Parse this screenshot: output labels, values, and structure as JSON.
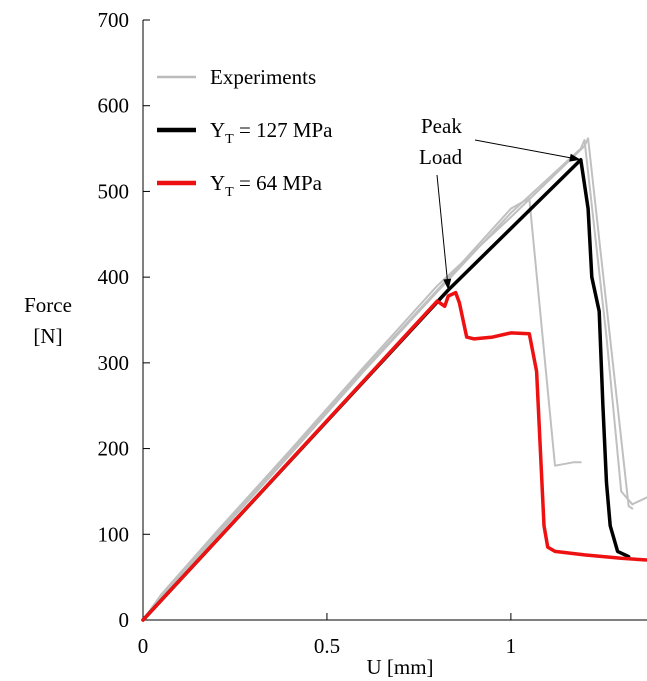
{
  "chart_data": {
    "type": "line",
    "title": "",
    "xlabel": "U [mm]",
    "ylabel_line1": "Force",
    "ylabel_line2": "[N]",
    "xlim": [
      0,
      1.37
    ],
    "ylim": [
      0,
      700
    ],
    "x_ticks": [
      {
        "value": 0,
        "label": "0"
      },
      {
        "value": 0.5,
        "label": "0.5"
      },
      {
        "value": 1,
        "label": "1"
      }
    ],
    "y_ticks": [
      {
        "value": 0,
        "label": "0"
      },
      {
        "value": 100,
        "label": "100"
      },
      {
        "value": 200,
        "label": "200"
      },
      {
        "value": 300,
        "label": "300"
      },
      {
        "value": 400,
        "label": "400"
      },
      {
        "value": 500,
        "label": "500"
      },
      {
        "value": 600,
        "label": "600"
      },
      {
        "value": 700,
        "label": "700"
      }
    ],
    "grid": false,
    "legend_position": "top-left",
    "legend": [
      {
        "main": "Experiments",
        "sub": "",
        "rest": "",
        "color": "#bbbbbb"
      },
      {
        "main": "Y",
        "sub": "T",
        "rest": " = 127 MPa",
        "color": "#000000"
      },
      {
        "main": "Y",
        "sub": "T",
        "rest": " = 64 MPa",
        "color": "#ee1111"
      }
    ],
    "annotation": {
      "line1": "Peak",
      "line2": "Load",
      "targets": [
        [
          0.83,
          385
        ],
        [
          1.19,
          537
        ]
      ]
    },
    "series": [
      {
        "color": "#c0c0c0",
        "width": 2,
        "points": [
          [
            0,
            0
          ],
          [
            0.05,
            28
          ],
          [
            0.2,
            100
          ],
          [
            0.4,
            195
          ],
          [
            0.6,
            292
          ],
          [
            0.8,
            385
          ],
          [
            1.0,
            480
          ],
          [
            1.05,
            492
          ],
          [
            1.12,
            180
          ],
          [
            1.17,
            184
          ],
          [
            1.19,
            184
          ]
        ]
      },
      {
        "color": "#c0c0c0",
        "width": 2,
        "points": [
          [
            0,
            0
          ],
          [
            0.05,
            30
          ],
          [
            0.2,
            103
          ],
          [
            0.4,
            198
          ],
          [
            0.6,
            295
          ],
          [
            0.8,
            390
          ],
          [
            1.0,
            470
          ],
          [
            1.2,
            553
          ],
          [
            1.21,
            562
          ],
          [
            1.32,
            133
          ],
          [
            1.33,
            130
          ]
        ]
      },
      {
        "color": "#c0c0c0",
        "width": 2,
        "points": [
          [
            0,
            0
          ],
          [
            0.05,
            26
          ],
          [
            0.2,
            98
          ],
          [
            0.4,
            193
          ],
          [
            0.6,
            290
          ],
          [
            0.8,
            383
          ],
          [
            1.0,
            475
          ],
          [
            1.19,
            550
          ],
          [
            1.2,
            560
          ],
          [
            1.26,
            330
          ],
          [
            1.3,
            150
          ],
          [
            1.33,
            135
          ],
          [
            1.37,
            143
          ]
        ]
      },
      {
        "color": "#000000",
        "width": 3.5,
        "points": [
          [
            0,
            0
          ],
          [
            0.83,
            385
          ],
          [
            1.19,
            537
          ],
          [
            1.21,
            480
          ],
          [
            1.22,
            400
          ],
          [
            1.24,
            360
          ],
          [
            1.25,
            250
          ],
          [
            1.26,
            160
          ],
          [
            1.27,
            110
          ],
          [
            1.29,
            80
          ],
          [
            1.32,
            74
          ]
        ]
      },
      {
        "color": "#ee1111",
        "width": 3.5,
        "points": [
          [
            0,
            0
          ],
          [
            0.2,
            93
          ],
          [
            0.4,
            186
          ],
          [
            0.6,
            279
          ],
          [
            0.8,
            372
          ],
          [
            0.82,
            366
          ],
          [
            0.83,
            378
          ],
          [
            0.85,
            382
          ],
          [
            0.86,
            370
          ],
          [
            0.88,
            330
          ],
          [
            0.9,
            328
          ],
          [
            0.95,
            330
          ],
          [
            1.0,
            335
          ],
          [
            1.05,
            334
          ],
          [
            1.07,
            290
          ],
          [
            1.08,
            200
          ],
          [
            1.09,
            110
          ],
          [
            1.1,
            85
          ],
          [
            1.12,
            80
          ],
          [
            1.2,
            76
          ],
          [
            1.3,
            72
          ],
          [
            1.37,
            70
          ]
        ]
      }
    ]
  }
}
